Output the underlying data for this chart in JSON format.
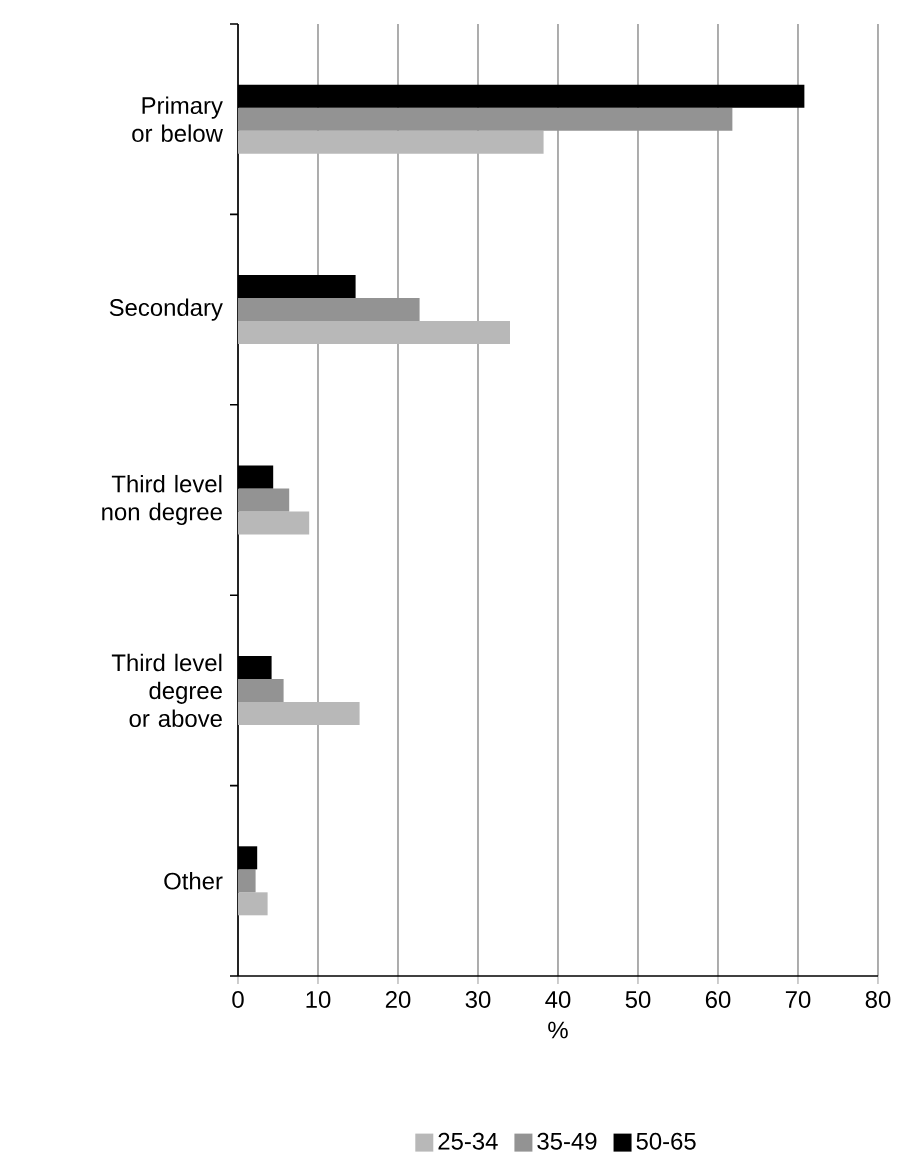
{
  "chart_data": {
    "type": "bar",
    "orientation": "horizontal",
    "xlabel": "%",
    "categories": [
      "Primary or below",
      "Secondary",
      "Third level non degree",
      "Third level degree or above",
      "Other"
    ],
    "series": [
      {
        "name": "25-34",
        "color": "#b8b8b8",
        "values": [
          38.2,
          34.0,
          8.9,
          15.2,
          3.7
        ]
      },
      {
        "name": "35-49",
        "color": "#939393",
        "values": [
          61.8,
          22.7,
          6.4,
          5.7,
          2.2
        ]
      },
      {
        "name": "50-65",
        "color": "#000000",
        "values": [
          70.8,
          14.7,
          4.4,
          4.2,
          2.4
        ]
      }
    ],
    "xlim": [
      0,
      80
    ],
    "xticks": [
      0,
      10,
      20,
      30,
      40,
      50,
      60,
      70,
      80
    ],
    "grid": "x",
    "legend": "bottom"
  }
}
